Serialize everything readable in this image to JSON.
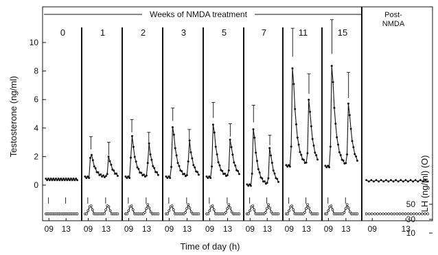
{
  "chart_data": {
    "type": "line",
    "header": "Weeks of NMDA treatment",
    "post_label": "Post-\nNMDA",
    "ylabel": "Testosterone (ng/ml)",
    "y2label": "LH (ng/ml) (O)",
    "xlabel": "Time of day (h)",
    "ylim": [
      -1.2,
      10.8
    ],
    "yticks": [
      0,
      2,
      4,
      6,
      8,
      10
    ],
    "y2ticks": [
      "50",
      "30",
      "10"
    ],
    "xticks": [
      "09",
      "13"
    ],
    "panels": [
      {
        "label": "0",
        "peaks": [],
        "base": 0.4,
        "lh_peaks": []
      },
      {
        "label": "1",
        "peaks": [
          {
            "t": 9.6,
            "v": 2.5,
            "err": 0.9
          },
          {
            "t": 13.6,
            "v": 2.1,
            "err": 0.9
          }
        ],
        "base": 0.55,
        "lh_peaks": [
          9.5,
          13.4
        ]
      },
      {
        "label": "2",
        "peaks": [
          {
            "t": 9.7,
            "v": 3.7,
            "err": 0.9
          },
          {
            "t": 13.5,
            "v": 3.0,
            "err": 0.7
          }
        ],
        "base": 0.55,
        "lh_peaks": [
          9.5,
          13.3
        ]
      },
      {
        "label": "3",
        "peaks": [
          {
            "t": 9.8,
            "v": 4.5,
            "err": 0.9
          },
          {
            "t": 13.5,
            "v": 3.2,
            "err": 0.7
          }
        ],
        "base": 0.55,
        "lh_peaks": [
          9.5,
          13.3
        ]
      },
      {
        "label": "5",
        "peaks": [
          {
            "t": 9.8,
            "v": 4.7,
            "err": 1.1
          },
          {
            "t": 13.6,
            "v": 3.4,
            "err": 0.9
          }
        ],
        "base": 0.55,
        "lh_peaks": [
          9.5,
          13.3
        ]
      },
      {
        "label": "7",
        "peaks": [
          {
            "t": 9.8,
            "v": 4.4,
            "err": 1.2
          },
          {
            "t": 13.6,
            "v": 2.8,
            "err": 0.7
          }
        ],
        "base": 0.0,
        "lh_peaks": [
          9.5,
          13.3
        ]
      },
      {
        "label": "11",
        "peaks": [
          {
            "t": 9.8,
            "v": 9.0,
            "err": 2.0
          },
          {
            "t": 13.6,
            "v": 6.4,
            "err": 1.4
          }
        ],
        "base": 1.35,
        "lh_peaks": [
          9.5,
          13.3
        ]
      },
      {
        "label": "15",
        "peaks": [
          {
            "t": 9.8,
            "v": 9.2,
            "err": 2.4
          },
          {
            "t": 13.6,
            "v": 6.1,
            "err": 1.8
          }
        ],
        "base": 1.3,
        "lh_peaks": [
          9.5,
          13.3
        ]
      },
      {
        "label": "",
        "peaks": [],
        "base": 0.3,
        "lh_peaks": []
      }
    ]
  }
}
